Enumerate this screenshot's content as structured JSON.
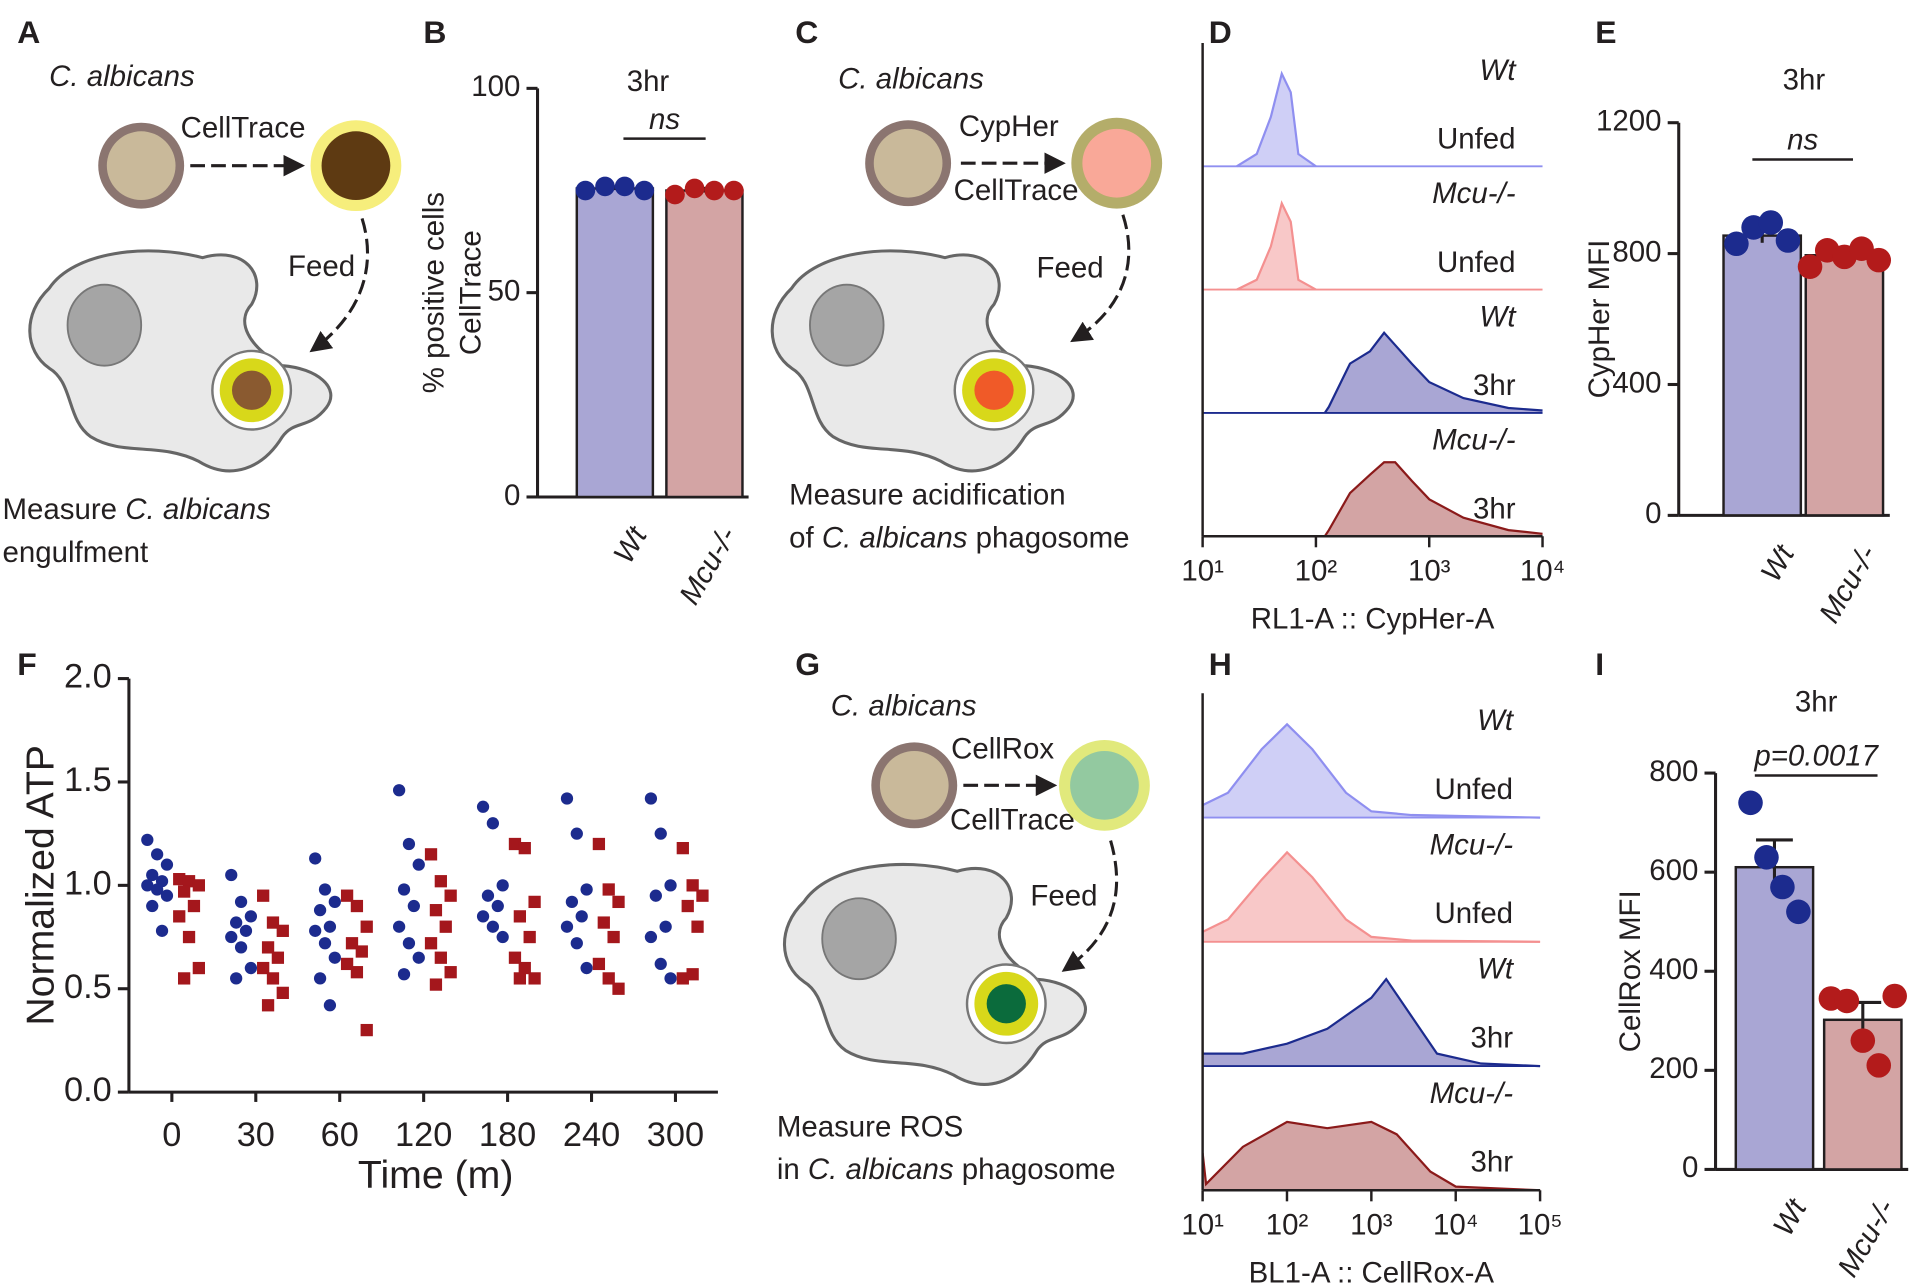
{
  "chart_data": [
    {
      "type": "bar",
      "panel": "B",
      "title": "3hr",
      "ylabel": [
        "% positive cells",
        "CellTrace"
      ],
      "categories": [
        "Wt",
        "Mcu-/-"
      ],
      "values": [
        75.5,
        75
      ],
      "errors": [
        0.4,
        0.5
      ],
      "points": [
        [
          75,
          76,
          76,
          75
        ],
        [
          74,
          75.5,
          75,
          75
        ]
      ],
      "colors": [
        "#a9a6d4",
        "#d3a4a4"
      ],
      "point_colors": [
        "#1c2b8e",
        "#b31b1b"
      ],
      "label_colors": [
        "#2b2b9e",
        "#ee4a40"
      ],
      "ylim": [
        0,
        100
      ],
      "yticks": [
        0,
        50,
        100
      ],
      "annotation": "ns"
    },
    {
      "type": "bar",
      "panel": "E",
      "title": "3hr",
      "ylabel": [
        "CypHer MFI"
      ],
      "categories": [
        "Wt",
        "Mcu-/-"
      ],
      "values": [
        855,
        795
      ],
      "errors": [
        22,
        15
      ],
      "points": [
        [
          830,
          880,
          895,
          840
        ],
        [
          760,
          810,
          790,
          815,
          780
        ]
      ],
      "colors": [
        "#a9a6d4",
        "#d3a4a4"
      ],
      "point_colors": [
        "#1c2b8e",
        "#b31b1b"
      ],
      "label_colors": [
        "#2b2b9e",
        "#ee4a40"
      ],
      "ylim": [
        0,
        1200
      ],
      "yticks": [
        0,
        400,
        800,
        1200
      ],
      "annotation": "ns"
    },
    {
      "type": "bar",
      "panel": "I",
      "title": "3hr",
      "ylabel": [
        "CellRox MFI"
      ],
      "categories": [
        "Wt",
        "Mcu-/-"
      ],
      "values": [
        610,
        302
      ],
      "errors": [
        55,
        35
      ],
      "points": [
        [
          740,
          630,
          570,
          520
        ],
        [
          345,
          340,
          260,
          210,
          350
        ]
      ],
      "colors": [
        "#a9a6d4",
        "#d3a4a4"
      ],
      "point_colors": [
        "#1c2b8e",
        "#b31b1b"
      ],
      "label_colors": [
        "#2b2b9e",
        "#ee4a40"
      ],
      "ylim": [
        0,
        800
      ],
      "yticks": [
        0,
        200,
        400,
        600,
        800
      ],
      "annotation": "p=0.0017"
    },
    {
      "type": "scatter",
      "panel": "F",
      "ylabel": "Normalized ATP",
      "xlabel": "Time (m)",
      "categories": [
        "0",
        "30",
        "60",
        "120",
        "180",
        "240",
        "300"
      ],
      "series": [
        {
          "name": "Wt",
          "color": "#1c2b8e",
          "values": [
            [
              1.22,
              1.15,
              1.1,
              1.05,
              1.02,
              1.0,
              0.98,
              0.95,
              0.9,
              0.78
            ],
            [
              1.05,
              0.92,
              0.85,
              0.82,
              0.78,
              0.75,
              0.7,
              0.6,
              0.55
            ],
            [
              1.13,
              0.98,
              0.92,
              0.88,
              0.8,
              0.78,
              0.72,
              0.65,
              0.55,
              0.42
            ],
            [
              1.46,
              1.2,
              1.1,
              0.98,
              0.9,
              0.8,
              0.72,
              0.65,
              0.57
            ],
            [
              1.38,
              1.3,
              1.0,
              0.95,
              0.9,
              0.85,
              0.8,
              0.75
            ],
            [
              1.42,
              1.25,
              0.98,
              0.92,
              0.85,
              0.8,
              0.72,
              0.6
            ],
            [
              1.42,
              1.25,
              1.0,
              0.95,
              0.8,
              0.75,
              0.62,
              0.55
            ]
          ]
        },
        {
          "name": "Mcu-/-",
          "color": "#a4171c",
          "values": [
            [
              1.03,
              1.02,
              1.0,
              0.97,
              0.9,
              0.85,
              0.75,
              0.6,
              0.55
            ],
            [
              0.95,
              0.82,
              0.78,
              0.7,
              0.65,
              0.6,
              0.55,
              0.48,
              0.42
            ],
            [
              0.95,
              0.9,
              0.8,
              0.72,
              0.68,
              0.62,
              0.58,
              0.3
            ],
            [
              1.15,
              1.02,
              0.95,
              0.88,
              0.8,
              0.72,
              0.65,
              0.58,
              0.52
            ],
            [
              1.2,
              1.18,
              0.92,
              0.85,
              0.75,
              0.65,
              0.6,
              0.55,
              0.55
            ],
            [
              1.2,
              0.98,
              0.92,
              0.82,
              0.75,
              0.62,
              0.55,
              0.5
            ],
            [
              1.18,
              1.0,
              0.95,
              0.9,
              0.8,
              0.55,
              0.57
            ]
          ]
        }
      ],
      "ylim": [
        0,
        2
      ],
      "yticks": [
        {
          "value": 0,
          "label": "0.0"
        },
        {
          "value": 0.5,
          "label": "0.5"
        },
        {
          "value": 1,
          "label": "1.0"
        },
        {
          "value": 1.5,
          "label": "1.5"
        },
        {
          "value": 2,
          "label": "2.0"
        }
      ]
    },
    {
      "type": "ridgeline",
      "panel": "D",
      "xlabel": "RL1-A :: CypHer-A",
      "xscale": "log",
      "xlim": [
        10,
        10000
      ],
      "xticks": [
        {
          "value": 10,
          "label": "10¹"
        },
        {
          "value": 100,
          "label": "10²"
        },
        {
          "value": 1000,
          "label": "10³"
        },
        {
          "value": 10000,
          "label": "10⁴"
        }
      ],
      "series": [
        {
          "name": "Wt",
          "condition": "Unfed",
          "color": "#8f8ff0",
          "fill": "#cfcff6",
          "x": [
            20,
            30,
            40,
            50,
            60,
            70,
            100
          ],
          "values": [
            0,
            10,
            40,
            75,
            60,
            10,
            0
          ]
        },
        {
          "name": "Mcu-/-",
          "condition": "Unfed",
          "color": "#f49090",
          "fill": "#f8c8c8",
          "x": [
            20,
            30,
            40,
            50,
            60,
            70,
            100
          ],
          "values": [
            0,
            8,
            35,
            70,
            55,
            8,
            0
          ]
        },
        {
          "name": "Wt",
          "condition": "3hr",
          "color": "#1c2b8e",
          "fill": "#a9a6d4",
          "x": [
            120,
            130,
            200,
            300,
            400,
            500,
            700,
            1000,
            2000,
            5000,
            10000
          ],
          "values": [
            0,
            5,
            40,
            50,
            65,
            55,
            40,
            25,
            12,
            4,
            2
          ]
        },
        {
          "name": "Mcu-/-",
          "condition": "3hr",
          "color": "#8b1a1a",
          "fill": "#d3a4a4",
          "x": [
            120,
            130,
            200,
            300,
            400,
            500,
            700,
            1000,
            2000,
            5000,
            10000
          ],
          "values": [
            0,
            5,
            35,
            50,
            60,
            60,
            45,
            30,
            15,
            5,
            2
          ]
        }
      ]
    },
    {
      "type": "ridgeline",
      "panel": "H",
      "xlabel": "BL1-A :: CellRox-A",
      "xscale": "log",
      "xlim": [
        10,
        100000
      ],
      "xticks": [
        {
          "value": 10,
          "label": "10¹"
        },
        {
          "value": 100,
          "label": "10²"
        },
        {
          "value": 1000,
          "label": "10³"
        },
        {
          "value": 10000,
          "label": "10⁴"
        },
        {
          "value": 100000,
          "label": "10⁵"
        }
      ],
      "series": [
        {
          "name": "Wt",
          "condition": "Unfed",
          "color": "#8f8ff0",
          "fill": "#cfcff6",
          "x": [
            10,
            20,
            50,
            100,
            200,
            500,
            1000,
            3000,
            100000
          ],
          "values": [
            10,
            20,
            55,
            75,
            55,
            20,
            5,
            2,
            0
          ]
        },
        {
          "name": "Mcu-/-",
          "condition": "Unfed",
          "color": "#f49090",
          "fill": "#f8c8c8",
          "x": [
            10,
            20,
            50,
            100,
            200,
            500,
            1000,
            3000,
            100000
          ],
          "values": [
            8,
            18,
            50,
            72,
            52,
            18,
            4,
            1,
            0
          ]
        },
        {
          "name": "Wt",
          "condition": "3hr",
          "color": "#1c2b8e",
          "fill": "#a9a6d4",
          "x": [
            10,
            30,
            100,
            300,
            1000,
            1500,
            3000,
            6000,
            20000,
            100000
          ],
          "values": [
            10,
            10,
            18,
            30,
            55,
            70,
            40,
            10,
            2,
            0
          ]
        },
        {
          "name": "Mcu-/-",
          "condition": "3hr",
          "color": "#8b1a1a",
          "fill": "#d3a4a4",
          "x": [
            10,
            11,
            30,
            100,
            300,
            1000,
            2000,
            5000,
            10000,
            100000
          ],
          "values": [
            30,
            5,
            35,
            55,
            50,
            55,
            45,
            15,
            3,
            0
          ]
        }
      ]
    }
  ],
  "diagrams": [
    {
      "panel": "A",
      "organism": "C. albicans",
      "dyes": [
        "CellTrace"
      ],
      "step": "Feed",
      "caption": [
        [
          {
            "text": "Measure "
          },
          {
            "text": "C. albicans",
            "italic": true
          }
        ],
        [
          {
            "text": "engulfment"
          }
        ]
      ]
    },
    {
      "panel": "C",
      "organism": "C. albicans",
      "dyes": [
        "CypHer",
        "CellTrace"
      ],
      "step": "Feed",
      "caption": [
        [
          {
            "text": "Measure acidification"
          }
        ],
        [
          {
            "text": "of "
          },
          {
            "text": "C. albicans",
            "italic": true
          },
          {
            "text": " phagosome"
          }
        ]
      ]
    },
    {
      "panel": "G",
      "organism": "C. albicans",
      "dyes": [
        "CellRox",
        "CellTrace"
      ],
      "step": "Feed",
      "caption": [
        [
          {
            "text": "Measure ROS"
          }
        ],
        [
          {
            "text": "in "
          },
          {
            "text": "C. albicans",
            "italic": true
          },
          {
            "text": " phagosome"
          }
        ]
      ]
    }
  ]
}
